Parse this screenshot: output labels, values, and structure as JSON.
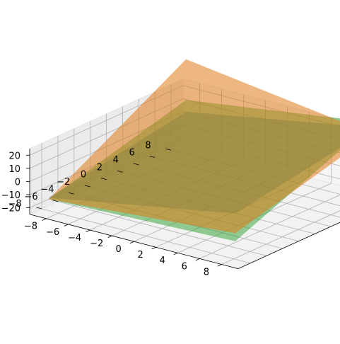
{
  "chart_data": {
    "type": "surface-3d",
    "title": "",
    "xlabel": "",
    "ylabel": "",
    "zlabel": "",
    "grid": true,
    "x_ticks": [
      -8,
      -6,
      -4,
      -2,
      0,
      2,
      4,
      6,
      8
    ],
    "x_tick_labels": [
      "−8",
      "−6",
      "−4",
      "−2",
      "0",
      "2",
      "4",
      "6",
      "8"
    ],
    "y_ticks": [
      -8,
      -6,
      -4,
      -2,
      0,
      2,
      4,
      6,
      8
    ],
    "y_tick_labels": [
      "−8",
      "−6",
      "−4",
      "−2",
      "0",
      "2",
      "4",
      "6",
      "8"
    ],
    "z_ticks": [
      -20,
      -10,
      0,
      10,
      20
    ],
    "z_tick_labels": [
      "−20",
      "−10",
      "0",
      "10",
      "20"
    ],
    "series": [
      {
        "color": "#1f77b4",
        "opacity": 0.5,
        "corners": [
          [
            -8.5,
            -8.5,
            -13
          ],
          [
            8.5,
            -8.5,
            12
          ],
          [
            8.5,
            8.5,
            30
          ],
          [
            -8.5,
            8.5,
            5
          ]
        ]
      },
      {
        "color": "#2ca02c",
        "opacity": 0.5,
        "corners": [
          [
            -8.5,
            -8.5,
            -14
          ],
          [
            8.5,
            -8.5,
            -9
          ],
          [
            8.5,
            8.5,
            34
          ],
          [
            -8.5,
            8.5,
            14
          ]
        ]
      },
      {
        "color": "#e07b1a",
        "opacity": 0.55,
        "corners": [
          [
            -8.5,
            -8.5,
            -14
          ],
          [
            8.5,
            -8.5,
            -3
          ],
          [
            8.5,
            8.5,
            25
          ],
          [
            -8.5,
            8.5,
            45
          ]
        ]
      }
    ]
  }
}
